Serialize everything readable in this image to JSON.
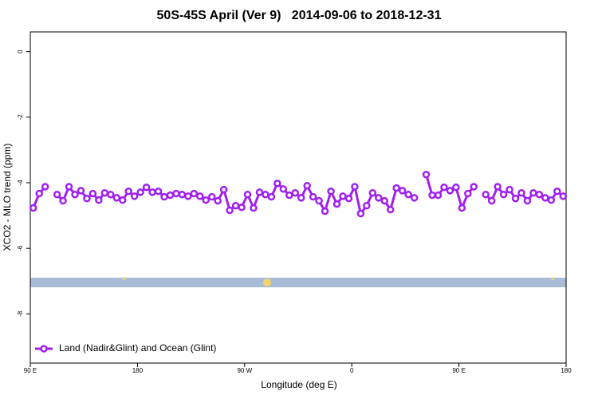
{
  "chart_data": {
    "type": "line",
    "title": "50S-45S April (Ver 9)   2014-09-06 to 2018-12-31",
    "xlabel": "Longitude (deg E)",
    "ylabel": "XCO2 - MLO trend (ppm)",
    "xlim": [
      90,
      540
    ],
    "ylim": [
      -9.5,
      0.6
    ],
    "xticks": [
      {
        "value": 90,
        "label": "90 E"
      },
      180,
      {
        "value": 270,
        "label": "90 W"
      },
      {
        "value": 360,
        "label": "0"
      },
      {
        "value": 450,
        "label": "90 E"
      },
      {
        "value": 540,
        "label": "180"
      }
    ],
    "yticks": [
      0,
      -2,
      -4,
      -6,
      -8
    ],
    "legend": "bottom-left",
    "x": [
      92.5,
      97.5,
      102.5,
      107.5,
      112.5,
      117.5,
      122.5,
      127.5,
      132.5,
      137.5,
      142.5,
      147.5,
      152.5,
      157.5,
      162.5,
      167.5,
      172.5,
      177.5,
      182.5,
      187.5,
      192.5,
      197.5,
      202.5,
      207.5,
      212.5,
      217.5,
      222.5,
      227.5,
      232.5,
      237.5,
      242.5,
      247.5,
      252.5,
      257.5,
      262.5,
      267.5,
      272.5,
      277.5,
      282.5,
      287.5,
      292.5,
      297.5,
      302.5,
      307.5,
      312.5,
      317.5,
      322.5,
      327.5,
      332.5,
      337.5,
      342.5,
      347.5,
      352.5,
      357.5,
      362.5,
      367.5,
      372.5,
      377.5,
      382.5,
      387.5,
      392.5,
      397.5,
      402.5,
      407.5,
      412.5,
      417.5,
      422.5,
      427.5,
      432.5,
      437.5,
      442.5,
      447.5,
      452.5,
      457.5,
      462.5,
      467.5,
      472.5,
      477.5,
      482.5,
      487.5,
      492.5,
      497.5,
      502.5,
      507.5,
      512.5,
      517.5,
      522.5,
      527.5,
      532.5,
      537.5
    ],
    "series": [
      {
        "name": "Land (Nadir&Glint) and Ocean (Glint)",
        "color": "#a020f0",
        "values": [
          -4.77,
          -4.33,
          -4.12,
          null,
          -4.36,
          -4.55,
          -4.12,
          -4.36,
          -4.24,
          -4.48,
          -4.33,
          -4.53,
          -4.31,
          -4.36,
          -4.46,
          -4.53,
          -4.26,
          -4.41,
          -4.29,
          -4.14,
          -4.29,
          -4.26,
          -4.43,
          -4.38,
          -4.33,
          -4.36,
          -4.41,
          -4.33,
          -4.41,
          -4.53,
          -4.43,
          -4.55,
          -4.21,
          -4.84,
          -4.7,
          -4.75,
          -4.36,
          -4.77,
          -4.29,
          -4.36,
          -4.43,
          -4.02,
          -4.19,
          -4.38,
          -4.31,
          -4.46,
          -4.09,
          -4.43,
          -4.55,
          -4.87,
          -4.26,
          -4.65,
          -4.41,
          -4.48,
          -4.12,
          -4.94,
          -4.7,
          -4.31,
          -4.46,
          -4.55,
          -4.82,
          -4.16,
          -4.24,
          -4.36,
          -4.46,
          null,
          -3.75,
          -4.38,
          -4.38,
          -4.14,
          -4.24,
          -4.14,
          -4.77,
          -4.33,
          -4.12,
          null,
          -4.36,
          -4.55,
          -4.12,
          -4.36,
          -4.21,
          -4.48,
          -4.31,
          -4.55,
          -4.31,
          -4.36,
          -4.46,
          -4.53,
          -4.26,
          -4.41
        ]
      }
    ]
  }
}
